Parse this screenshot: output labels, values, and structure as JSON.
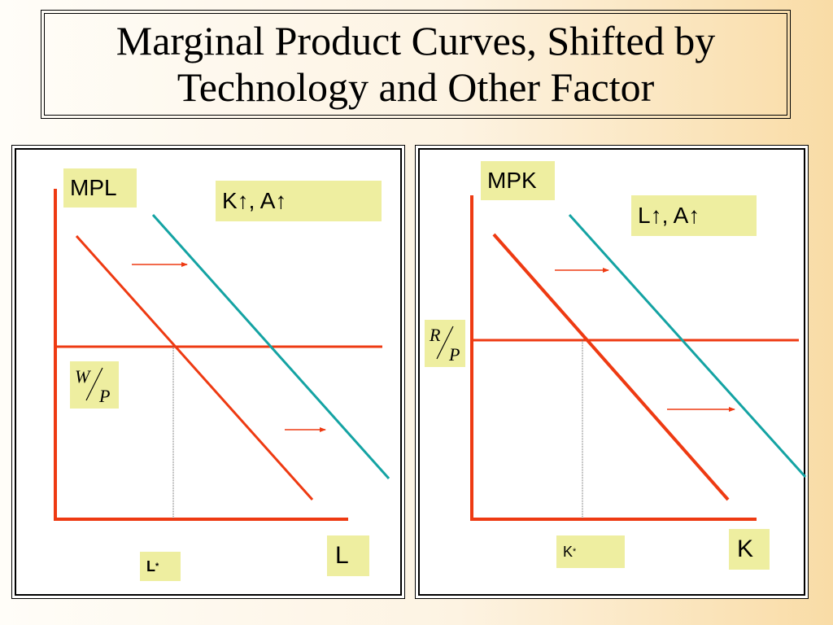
{
  "title": {
    "line1": "Marginal Product Curves, Shifted by",
    "line2": "Technology and Other Factor"
  },
  "left_panel": {
    "axis_label_y": "MPL",
    "axis_label_x": "L",
    "shift_label": "K↑, A↑",
    "price_ratio": {
      "num": "W",
      "den": "P"
    },
    "equilibrium_label": "L",
    "equilibrium_sup": "*"
  },
  "right_panel": {
    "axis_label_y": "MPK",
    "axis_label_x": "K",
    "shift_label": "L↑, A↑",
    "price_ratio": {
      "num": "R",
      "den": "P"
    },
    "equilibrium_label": "K",
    "equilibrium_sup": "*"
  },
  "colors": {
    "original_curve": "#ee3a12",
    "shifted_curve": "#14a3a3",
    "label_fill": "#eeeea0"
  }
}
